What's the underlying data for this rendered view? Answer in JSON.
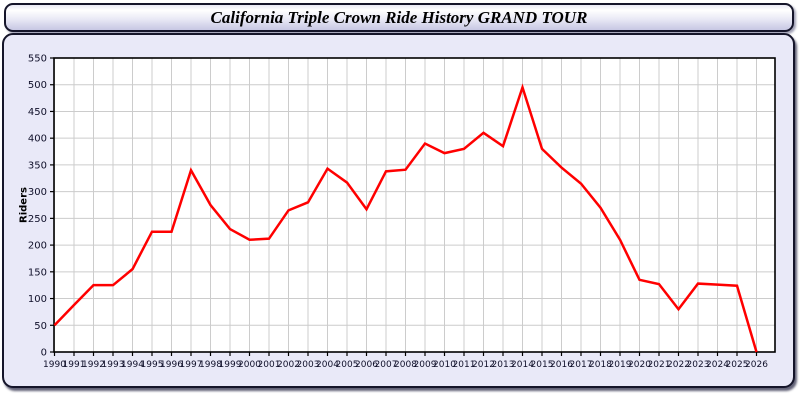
{
  "header": {
    "title": "California Triple Crown Ride History GRAND TOUR"
  },
  "chart_data": {
    "type": "line",
    "title": "California Triple Crown Ride History GRAND TOUR",
    "xlabel": "",
    "ylabel": "Riders",
    "x": [
      1990,
      1991,
      1992,
      1993,
      1994,
      1995,
      1996,
      1997,
      1998,
      1999,
      2000,
      2001,
      2002,
      2003,
      2004,
      2005,
      2006,
      2007,
      2008,
      2009,
      2010,
      2011,
      2012,
      2013,
      2014,
      2015,
      2016,
      2017,
      2018,
      2019,
      2020,
      2021,
      2022,
      2023,
      2024,
      2025,
      2026
    ],
    "series": [
      {
        "name": "Riders",
        "values": [
          50,
          88,
          125,
          125,
          155,
          225,
          225,
          340,
          275,
          230,
          210,
          212,
          265,
          280,
          343,
          317,
          267,
          338,
          341,
          390,
          372,
          380,
          410,
          385,
          495,
          380,
          345,
          315,
          270,
          210,
          135,
          127,
          80,
          128,
          126,
          124,
          0
        ]
      }
    ],
    "ylim": [
      0,
      550
    ],
    "ytick_step": 50,
    "grid": true,
    "legend_position": "none"
  },
  "colors": {
    "line": "#ff0000",
    "panel_bg": "#e9e9f8",
    "plot_bg": "#ffffff",
    "grid": "#cccccc",
    "frame": "#000000",
    "tick_label": "#10102a",
    "border": "#15152a"
  }
}
